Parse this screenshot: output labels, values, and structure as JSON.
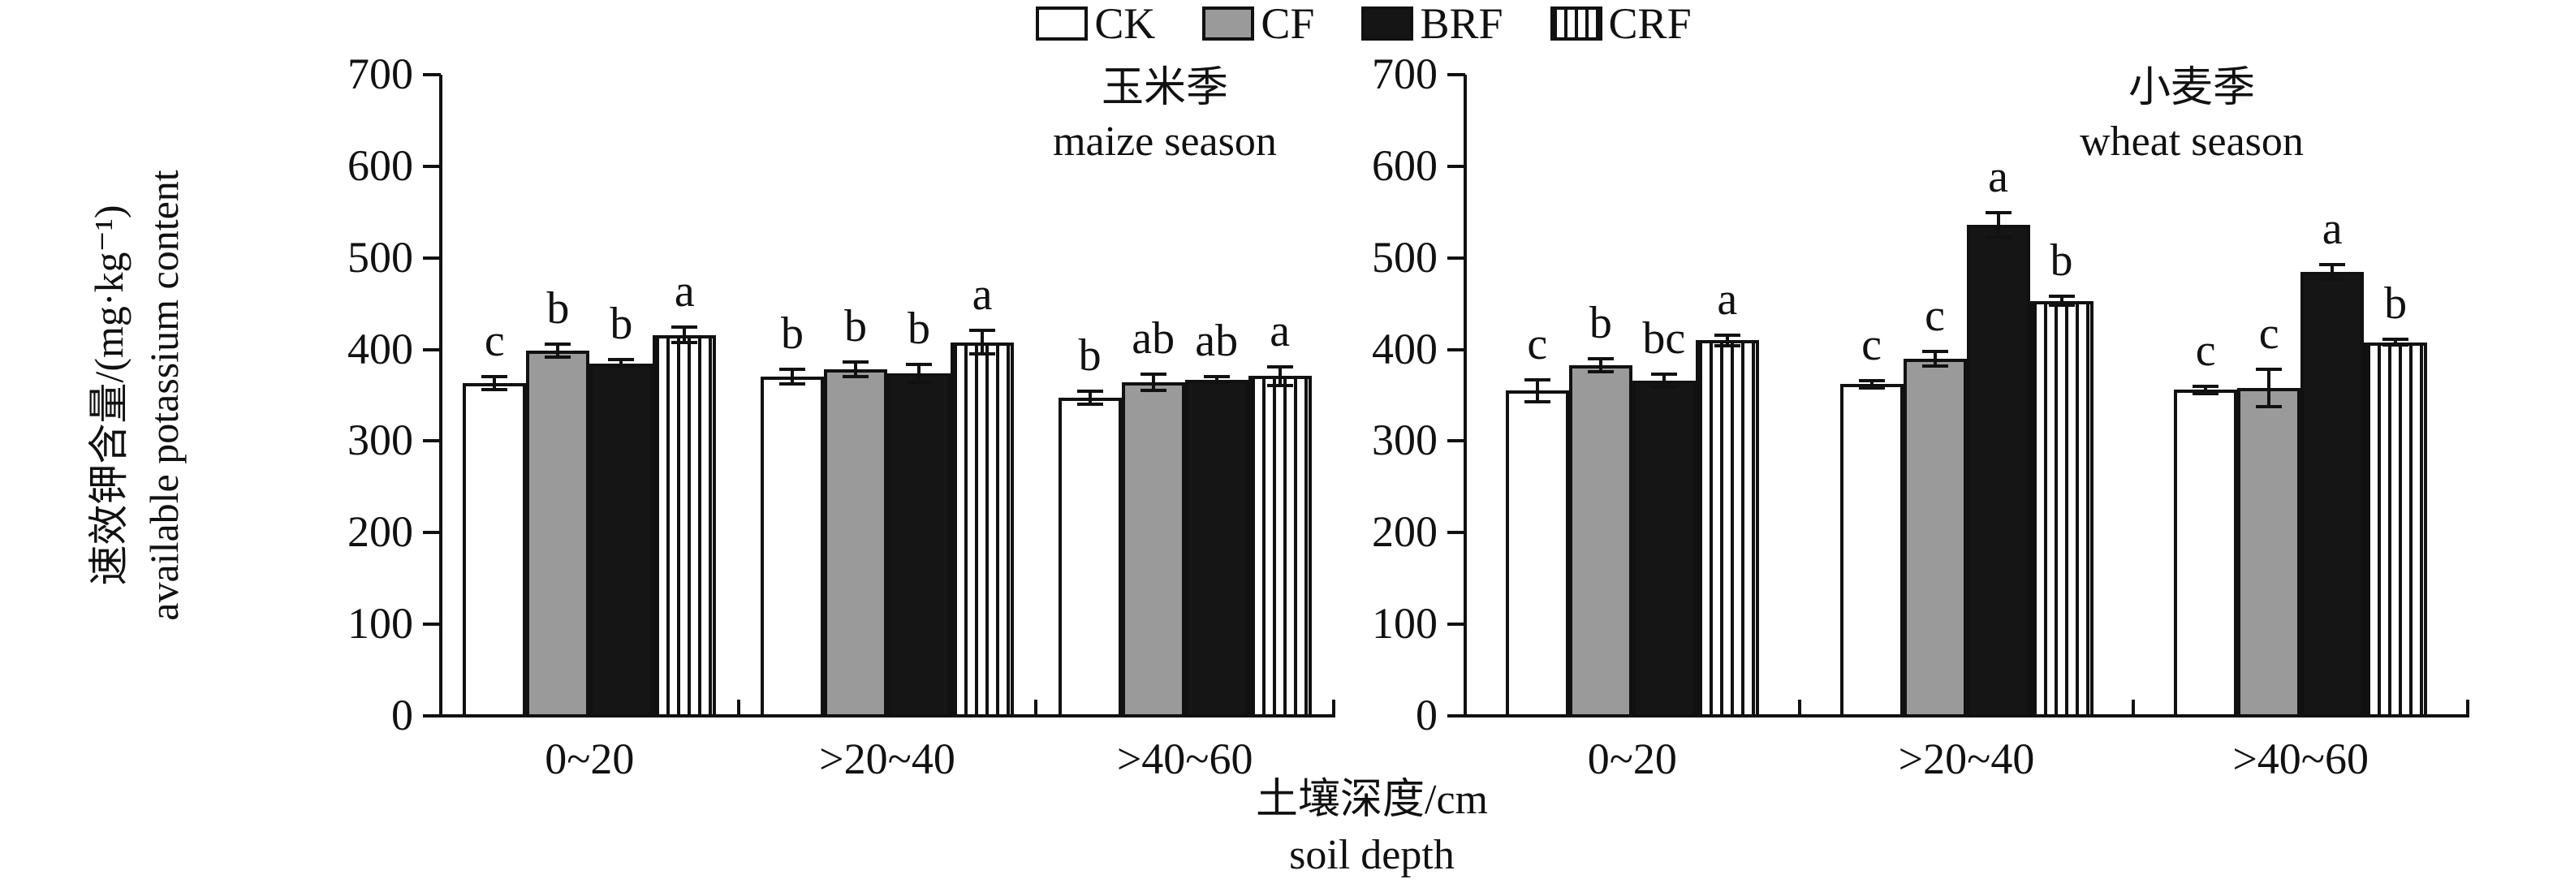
{
  "legend": {
    "items": [
      {
        "label": "CK",
        "swatch": "white"
      },
      {
        "label": "CF",
        "swatch": "gray"
      },
      {
        "label": "BRF",
        "swatch": "black"
      },
      {
        "label": "CRF",
        "swatch": "stripes"
      }
    ]
  },
  "y_axis": {
    "label_zh": "速效钾含量/(mg·kg⁻¹)",
    "label_en": "available potassium content",
    "ticks": [
      0,
      100,
      200,
      300,
      400,
      500,
      600,
      700
    ]
  },
  "x_axis": {
    "title_zh": "土壤深度/cm",
    "title_en": "soil depth"
  },
  "colors": {
    "bar_gray": "#9a9a9a",
    "bar_black": "#151515",
    "axis": "#111111"
  },
  "chart_data": {
    "type": "bar",
    "title": "",
    "xlabel": "土壤深度/cm soil depth",
    "ylabel": "速效钾含量/(mg·kg⁻¹) available potassium content",
    "ylim": [
      0,
      700
    ],
    "yticks": [
      0,
      100,
      200,
      300,
      400,
      500,
      600,
      700
    ],
    "grid": false,
    "legend_position": "top-center",
    "categories": [
      "0~20",
      ">20~40",
      ">40~60"
    ],
    "panels": [
      {
        "title_zh": "玉米季",
        "title_en": "maize season",
        "series": [
          {
            "name": "CK",
            "values": [
              363,
              370,
              347
            ],
            "errors": [
              7,
              8,
              7
            ],
            "letters": [
              "c",
              "b",
              "b"
            ]
          },
          {
            "name": "CF",
            "values": [
              399,
              378,
              364
            ],
            "errors": [
              7,
              8,
              9
            ],
            "letters": [
              "b",
              "b",
              "ab"
            ]
          },
          {
            "name": "BRF",
            "values": [
              385,
              374,
              367
            ],
            "errors": [
              4,
              10,
              3
            ],
            "letters": [
              "b",
              "b",
              "ab"
            ]
          },
          {
            "name": "CRF",
            "values": [
              416,
              408,
              371
            ],
            "errors": [
              8,
              13,
              10
            ],
            "letters": [
              "a",
              "a",
              "a"
            ]
          }
        ]
      },
      {
        "title_zh": "小麦季",
        "title_en": "wheat season",
        "series": [
          {
            "name": "CK",
            "values": [
              355,
              362,
              356
            ],
            "errors": [
              12,
              4,
              4
            ],
            "letters": [
              "c",
              "c",
              "c"
            ]
          },
          {
            "name": "CF",
            "values": [
              383,
              390,
              358
            ],
            "errors": [
              7,
              8,
              20
            ],
            "letters": [
              "b",
              "c",
              "c"
            ]
          },
          {
            "name": "BRF",
            "values": [
              366,
              536,
              485
            ],
            "errors": [
              7,
              13,
              8
            ],
            "letters": [
              "bc",
              "a",
              "a"
            ]
          },
          {
            "name": "CRF",
            "values": [
              410,
              453,
              408
            ],
            "errors": [
              6,
              5,
              3
            ],
            "letters": [
              "a",
              "b",
              "b"
            ]
          }
        ]
      }
    ]
  }
}
